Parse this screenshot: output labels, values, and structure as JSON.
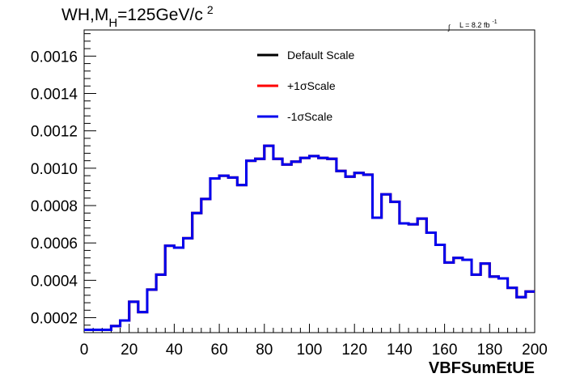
{
  "chart_data": {
    "type": "line",
    "style": "step-histogram",
    "title_main": "WH,M",
    "title_sub": "H",
    "title_rest": "=125GeV/c",
    "title_sup": "2",
    "lumi_integral": "∫",
    "lumi_text": "L = 8.2 fb",
    "lumi_sup": "-1",
    "xlabel": "VBFSumEtUE",
    "ylabel": "",
    "xlim": [
      0,
      200
    ],
    "ylim": [
      0.00012,
      0.00174
    ],
    "x_ticks": [
      0,
      20,
      40,
      60,
      80,
      100,
      120,
      140,
      160,
      180,
      200
    ],
    "x_tick_labels": [
      "0",
      "20",
      "40",
      "60",
      "80",
      "100",
      "120",
      "140",
      "160",
      "180",
      "200"
    ],
    "y_ticks": [
      0.0002,
      0.0004,
      0.0006,
      0.0008,
      0.001,
      0.0012,
      0.0014,
      0.0016
    ],
    "y_tick_labels": [
      "0.0002",
      "0.0004",
      "0.0006",
      "0.0008",
      "0.0010",
      "0.0012",
      "0.0014",
      "0.0016"
    ],
    "grid": false,
    "legend_position": "top-center",
    "bin_edges": [
      0,
      4,
      8,
      12,
      16,
      20,
      24,
      28,
      32,
      36,
      40,
      44,
      48,
      52,
      56,
      60,
      64,
      68,
      72,
      76,
      80,
      84,
      88,
      92,
      96,
      100,
      104,
      108,
      112,
      116,
      120,
      124,
      128,
      132,
      136,
      140,
      144,
      148,
      152,
      156,
      160,
      164,
      168,
      172,
      176,
      180,
      184,
      188,
      192,
      196,
      200
    ],
    "series": [
      {
        "name": "Default Scale",
        "color": "#000000",
        "values": [
          0.000135,
          0.000135,
          0.000135,
          0.000155,
          0.000185,
          0.000285,
          0.00023,
          0.00035,
          0.00043,
          0.000585,
          0.000575,
          0.000625,
          0.00076,
          0.000835,
          0.000945,
          0.00096,
          0.00095,
          0.00091,
          0.00104,
          0.00105,
          0.00112,
          0.00105,
          0.00102,
          0.001035,
          0.001055,
          0.001065,
          0.001055,
          0.00105,
          0.000985,
          0.000955,
          0.000975,
          0.000965,
          0.000735,
          0.00086,
          0.00082,
          0.000705,
          0.0007,
          0.00073,
          0.000655,
          0.00059,
          0.000495,
          0.00052,
          0.00051,
          0.00043,
          0.00049,
          0.00042,
          0.00041,
          0.00036,
          0.00031,
          0.00034
        ]
      },
      {
        "name": "+1σScale",
        "color": "#ff0000",
        "values": [
          0.000135,
          0.000135,
          0.000135,
          0.000155,
          0.000185,
          0.000285,
          0.00023,
          0.00035,
          0.00043,
          0.000585,
          0.000575,
          0.000625,
          0.00076,
          0.000835,
          0.000945,
          0.00096,
          0.00095,
          0.00091,
          0.00104,
          0.00105,
          0.00112,
          0.00105,
          0.00102,
          0.001035,
          0.001055,
          0.001065,
          0.001055,
          0.00105,
          0.000985,
          0.000955,
          0.000975,
          0.000965,
          0.000735,
          0.00086,
          0.00082,
          0.000705,
          0.0007,
          0.00073,
          0.000655,
          0.00059,
          0.000495,
          0.00052,
          0.00051,
          0.00043,
          0.00049,
          0.00042,
          0.00041,
          0.00036,
          0.00031,
          0.00034
        ]
      },
      {
        "name": "-1σScale",
        "color": "#0000ee",
        "values": [
          0.000135,
          0.000135,
          0.000135,
          0.000155,
          0.000185,
          0.000285,
          0.00023,
          0.00035,
          0.00043,
          0.000585,
          0.000575,
          0.000625,
          0.00076,
          0.000835,
          0.000945,
          0.00096,
          0.00095,
          0.00091,
          0.00104,
          0.00105,
          0.00112,
          0.00105,
          0.00102,
          0.001035,
          0.001055,
          0.001065,
          0.001055,
          0.00105,
          0.000985,
          0.000955,
          0.000975,
          0.000965,
          0.000735,
          0.00086,
          0.00082,
          0.000705,
          0.0007,
          0.00073,
          0.000655,
          0.00059,
          0.000495,
          0.00052,
          0.00051,
          0.00043,
          0.00049,
          0.00042,
          0.00041,
          0.00036,
          0.00031,
          0.00034
        ]
      }
    ]
  }
}
